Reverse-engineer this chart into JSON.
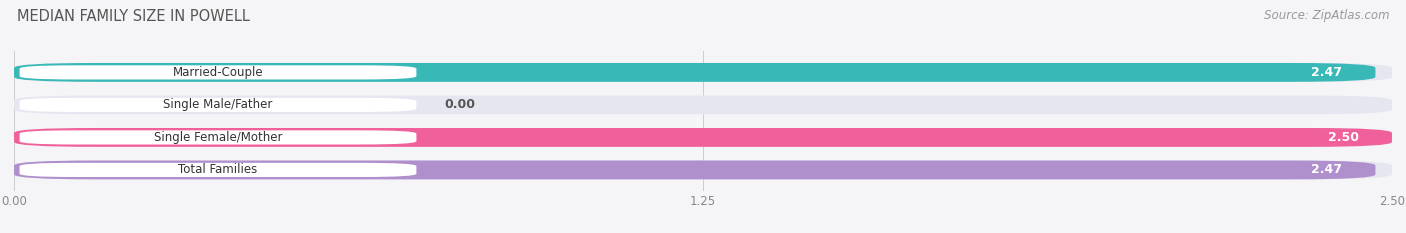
{
  "title": "MEDIAN FAMILY SIZE IN POWELL",
  "source": "Source: ZipAtlas.com",
  "categories": [
    "Married-Couple",
    "Single Male/Father",
    "Single Female/Mother",
    "Total Families"
  ],
  "values": [
    2.47,
    0.0,
    2.5,
    2.47
  ],
  "bar_colors": [
    "#39b8b8",
    "#a8c0e8",
    "#f0609a",
    "#b090cc"
  ],
  "bar_bg_color": "#e6e6f0",
  "label_bg_color": "#ffffff",
  "xlim": [
    0,
    2.5
  ],
  "xticks": [
    0.0,
    1.25,
    2.5
  ],
  "xtick_labels": [
    "0.00",
    "1.25",
    "2.50"
  ],
  "title_fontsize": 10.5,
  "source_fontsize": 8.5,
  "label_fontsize": 8.5,
  "value_fontsize": 9,
  "background_color": "#f5f5f8",
  "value_color": "#ffffff",
  "zero_value_color": "#555555",
  "grid_color": "#cccccc",
  "tick_color": "#888888",
  "title_color": "#555555"
}
